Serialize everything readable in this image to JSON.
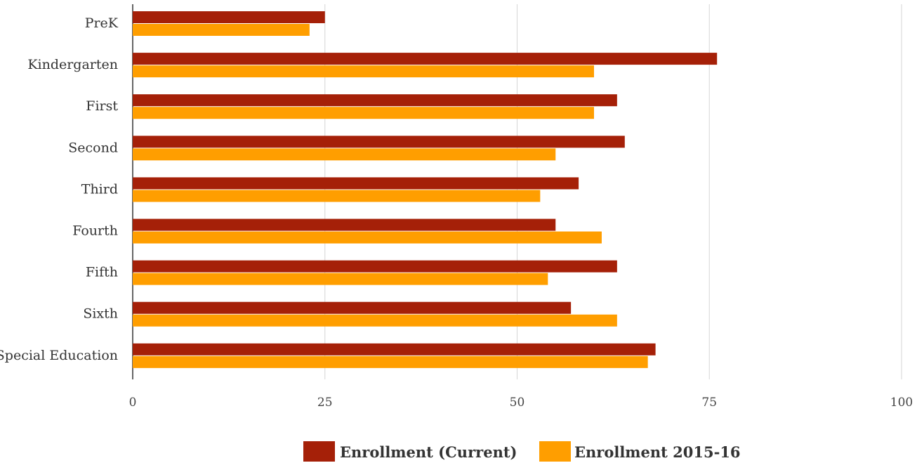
{
  "chart_data": {
    "type": "bar",
    "orientation": "horizontal",
    "categories": [
      "PreK",
      "Kindergarten",
      "First",
      "Second",
      "Third",
      "Fourth",
      "Fifth",
      "Sixth",
      "Special Education"
    ],
    "series": [
      {
        "name": "Enrollment (Current)",
        "color": "#A52008",
        "values": [
          25,
          76,
          63,
          64,
          58,
          55,
          63,
          57,
          68
        ]
      },
      {
        "name": "Enrollment 2015-16",
        "color": "#FF9E00",
        "values": [
          23,
          60,
          60,
          55,
          53,
          61,
          54,
          63,
          67
        ]
      }
    ],
    "xlim": [
      0,
      100
    ],
    "xticks": [
      "0",
      "25",
      "50",
      "75",
      "100"
    ],
    "grid": true,
    "legend_position": "bottom-center",
    "title": "",
    "xlabel": "",
    "ylabel": ""
  }
}
